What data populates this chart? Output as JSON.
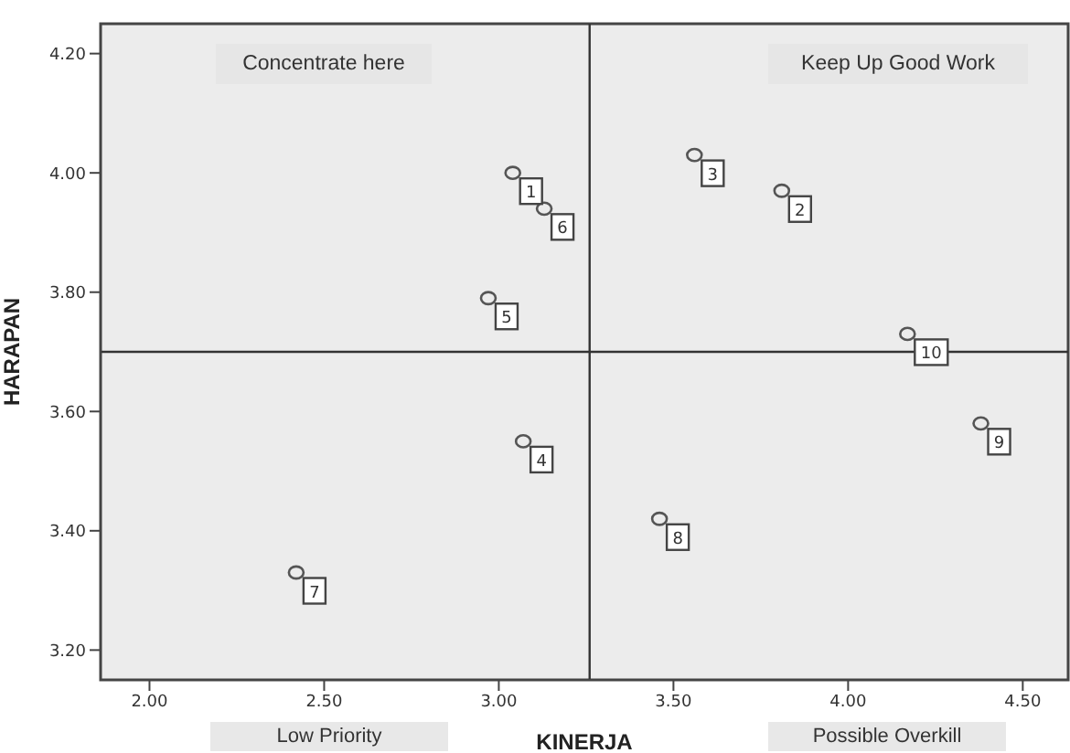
{
  "chart_data": {
    "type": "scatter",
    "xlabel": "KINERJA",
    "ylabel": "HARAPAN",
    "x": [
      3.04,
      3.81,
      3.56,
      3.07,
      2.97,
      3.13,
      2.42,
      3.46,
      4.38,
      4.17
    ],
    "series": [
      {
        "color": "#555555",
        "values": [
          4.0,
          3.97,
          4.03,
          3.55,
          3.79,
          3.94,
          3.33,
          3.42,
          3.58,
          3.73
        ]
      }
    ],
    "marker": "circle",
    "legend": false,
    "xlim": [
      1.86,
      4.63
    ],
    "xticks": [
      {
        "value": 2,
        "label": "2.00"
      },
      {
        "value": 2.5,
        "label": "2.50"
      },
      {
        "value": 3,
        "label": "3.00"
      },
      {
        "value": 3.5,
        "label": "3.50"
      },
      {
        "value": 4,
        "label": "4.00"
      },
      {
        "value": 4.5,
        "label": "4.50"
      }
    ],
    "ylim": [
      3.15,
      4.25
    ],
    "yticks": [
      {
        "value": 3.2,
        "label": "3.20"
      },
      {
        "value": 3.4,
        "label": "3.40"
      },
      {
        "value": 3.6,
        "label": "3.60"
      },
      {
        "value": 3.8,
        "label": "3.80"
      },
      {
        "value": 4,
        "label": "4.00"
      },
      {
        "value": 4.2,
        "label": "4.20"
      }
    ],
    "ref_lines": [
      {
        "axis": "x",
        "value": 3.26,
        "color": "#333333"
      },
      {
        "axis": "y",
        "value": 3.7,
        "color": "#333333"
      }
    ],
    "annotations": [
      "Concentrate here",
      "Keep Up Good Work",
      "Low Priority",
      "Possible Overkill",
      {
        "text": "1",
        "x": 3.04,
        "y": 4.0
      },
      {
        "text": "2",
        "x": 3.81,
        "y": 3.97
      },
      {
        "text": "3",
        "x": 3.56,
        "y": 4.03
      },
      {
        "text": "4",
        "x": 3.07,
        "y": 3.55
      },
      {
        "text": "5",
        "x": 2.97,
        "y": 3.79
      },
      {
        "text": "6",
        "x": 3.13,
        "y": 3.94
      },
      {
        "text": "7",
        "x": 2.42,
        "y": 3.33
      },
      {
        "text": "8",
        "x": 3.46,
        "y": 3.42
      },
      {
        "text": "9",
        "x": 4.38,
        "y": 3.58
      },
      {
        "text": "10",
        "x": 4.17,
        "y": 3.73
      }
    ]
  }
}
